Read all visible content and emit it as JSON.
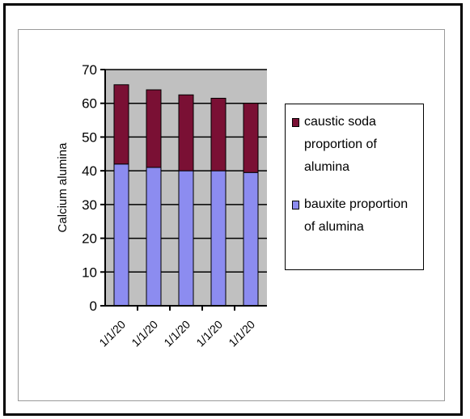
{
  "chart_data": {
    "type": "bar",
    "stacked": true,
    "title": "",
    "xlabel": "",
    "ylabel": "Calcium alumina",
    "ylim": [
      0,
      70
    ],
    "yticks": [
      "0",
      "10",
      "20",
      "30",
      "40",
      "50",
      "60",
      "70"
    ],
    "categories": [
      "1/1/20",
      "1/1/20",
      "1/1/20",
      "1/1/20",
      "1/1/20"
    ],
    "series": [
      {
        "name": "bauxite proportion of alumina",
        "values": [
          42,
          41,
          40,
          40,
          39.5
        ],
        "color": "#8c8cf0"
      },
      {
        "name": "caustic soda proportion of alumina",
        "values": [
          23.5,
          23,
          22.5,
          21.5,
          20.5
        ],
        "color": "#7a1034"
      }
    ],
    "plot_background": "#c0c0c0",
    "grid": true,
    "legend_position": "right"
  },
  "legend": {
    "items": [
      {
        "label": "caustic soda proportion of alumina",
        "color": "#7a1034"
      },
      {
        "label": "bauxite proportion of alumina",
        "color": "#8c8cf0"
      }
    ]
  }
}
